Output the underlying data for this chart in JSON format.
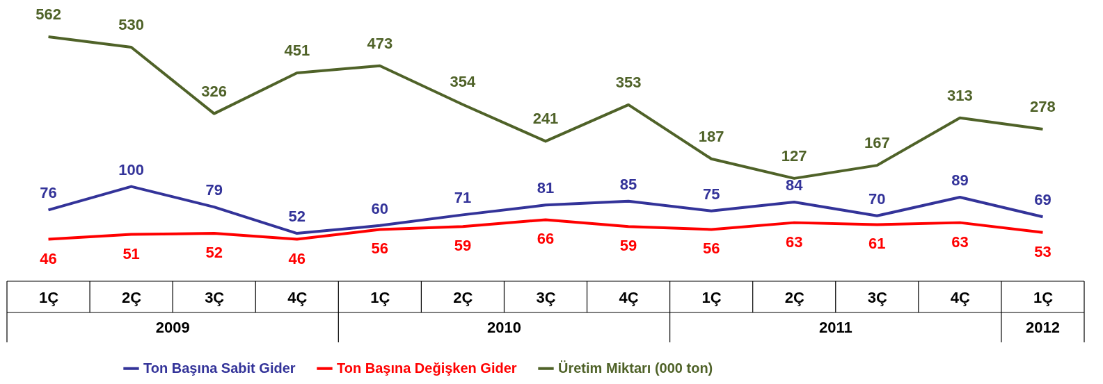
{
  "chart_data": {
    "type": "line",
    "categories": [
      "1Ç",
      "2Ç",
      "3Ç",
      "4Ç",
      "1Ç",
      "2Ç",
      "3Ç",
      "4Ç",
      "1Ç",
      "2Ç",
      "3Ç",
      "4Ç",
      "1Ç"
    ],
    "series": [
      {
        "name": "Ton Başına Sabit Gider",
        "color": "#333399",
        "values": [
          76,
          100,
          79,
          52,
          60,
          71,
          81,
          85,
          75,
          84,
          70,
          89,
          69
        ]
      },
      {
        "name": "Ton Başına Değişken Gider",
        "color": "#ff0000",
        "values": [
          46,
          51,
          52,
          46,
          56,
          59,
          66,
          59,
          56,
          63,
          61,
          63,
          53
        ]
      },
      {
        "name": "Üretim Miktarı (000 ton)",
        "color": "#4f6228",
        "axis": "y2",
        "values": [
          562,
          530,
          326,
          451,
          473,
          354,
          241,
          353,
          187,
          127,
          167,
          313,
          278
        ]
      }
    ],
    "annotations": [
      "2009",
      "2010",
      "2011",
      "2012"
    ],
    "ylim": [
      3,
      291
    ],
    "y2lim": [
      -189,
      675
    ],
    "data_labels": true,
    "tick_labels": "x",
    "legend": "bottom",
    "marker": "none",
    "line_style": "solid"
  }
}
